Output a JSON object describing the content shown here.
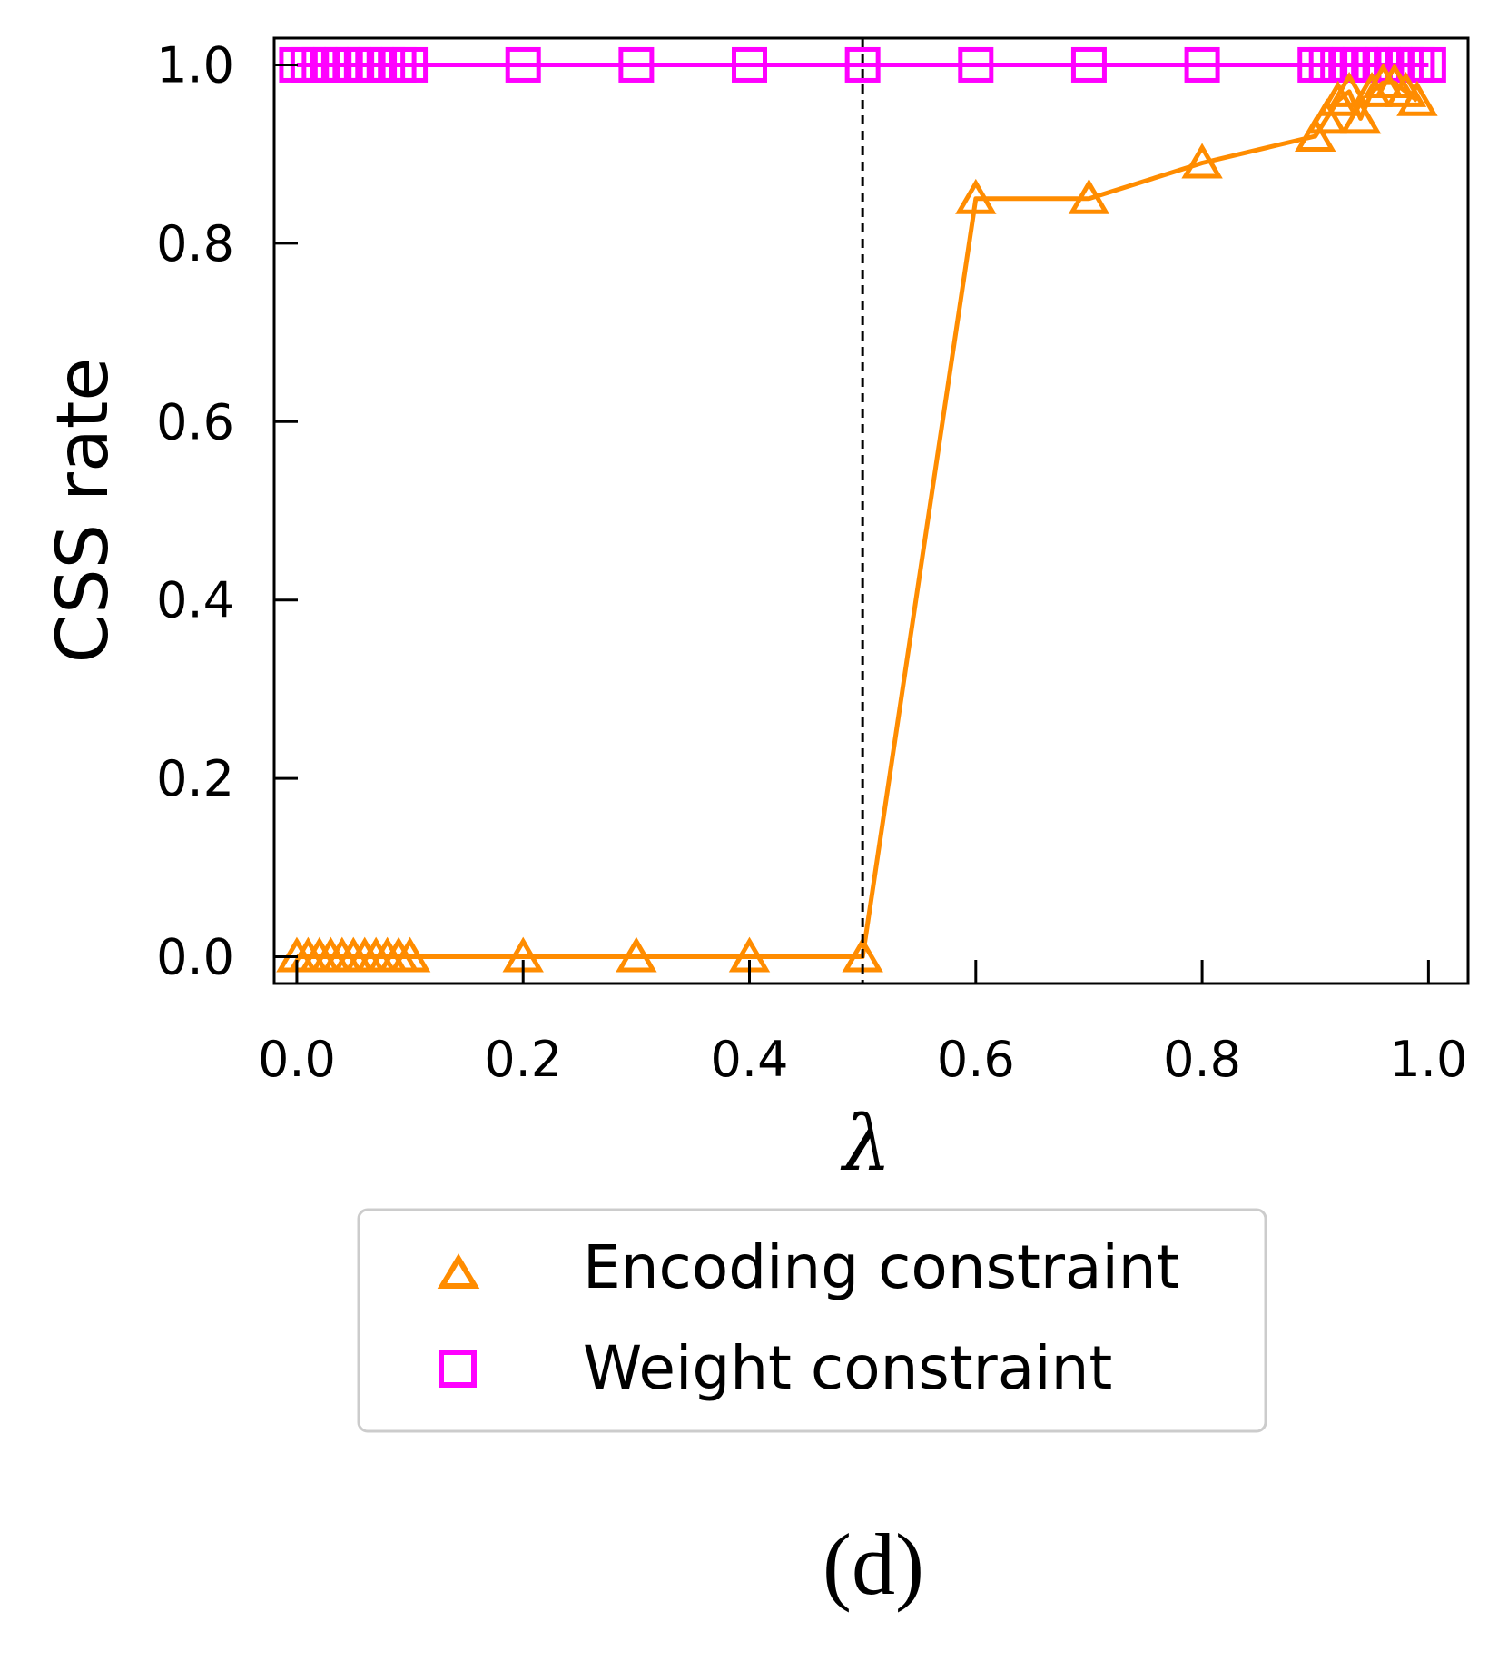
{
  "chart_data": {
    "type": "line",
    "title": "",
    "xlabel": "λ",
    "ylabel": "CSS rate",
    "xlim": [
      -0.02,
      1.035
    ],
    "ylim": [
      -0.03,
      1.03
    ],
    "xticks": [
      0.0,
      0.2,
      0.4,
      0.6,
      0.8,
      1.0
    ],
    "xtick_labels": [
      "0.0",
      "0.2",
      "0.4",
      "0.6",
      "0.8",
      "1.0"
    ],
    "yticks": [
      0.0,
      0.2,
      0.4,
      0.6,
      0.8,
      1.0
    ],
    "ytick_labels": [
      "0.0",
      "0.2",
      "0.4",
      "0.6",
      "0.8",
      "1.0"
    ],
    "grid": false,
    "vline": {
      "x": 0.5,
      "style": "dashed",
      "color": "#000000"
    },
    "legend_position": "below",
    "series": [
      {
        "name": "Encoding constraint",
        "marker": "triangle-open",
        "color": "#ff8c00",
        "x": [
          0.0,
          0.01,
          0.02,
          0.03,
          0.04,
          0.05,
          0.06,
          0.07,
          0.08,
          0.09,
          0.1,
          0.2,
          0.3,
          0.4,
          0.5,
          0.6,
          0.7,
          0.8,
          0.9,
          0.91,
          0.92,
          0.93,
          0.94,
          0.95,
          0.96,
          0.97,
          0.98,
          0.99
        ],
        "y": [
          0.0,
          0.0,
          0.0,
          0.0,
          0.0,
          0.0,
          0.0,
          0.0,
          0.0,
          0.0,
          0.0,
          0.0,
          0.0,
          0.0,
          0.0,
          0.85,
          0.85,
          0.89,
          0.92,
          0.94,
          0.96,
          0.97,
          0.94,
          0.97,
          0.98,
          0.98,
          0.97,
          0.96
        ]
      },
      {
        "name": "Weight constraint",
        "marker": "square-open",
        "color": "#ff00ff",
        "x": [
          0.0,
          0.01,
          0.02,
          0.03,
          0.04,
          0.05,
          0.06,
          0.07,
          0.08,
          0.09,
          0.1,
          0.2,
          0.3,
          0.4,
          0.5,
          0.6,
          0.7,
          0.8,
          0.9,
          0.91,
          0.92,
          0.93,
          0.94,
          0.95,
          0.96,
          0.97,
          0.98,
          0.99,
          1.0
        ],
        "y": [
          1.0,
          1.0,
          1.0,
          1.0,
          1.0,
          1.0,
          1.0,
          1.0,
          1.0,
          1.0,
          1.0,
          1.0,
          1.0,
          1.0,
          1.0,
          1.0,
          1.0,
          1.0,
          1.0,
          1.0,
          1.0,
          1.0,
          1.0,
          1.0,
          1.0,
          1.0,
          1.0,
          1.0,
          1.0
        ]
      }
    ]
  },
  "caption": "(d)"
}
